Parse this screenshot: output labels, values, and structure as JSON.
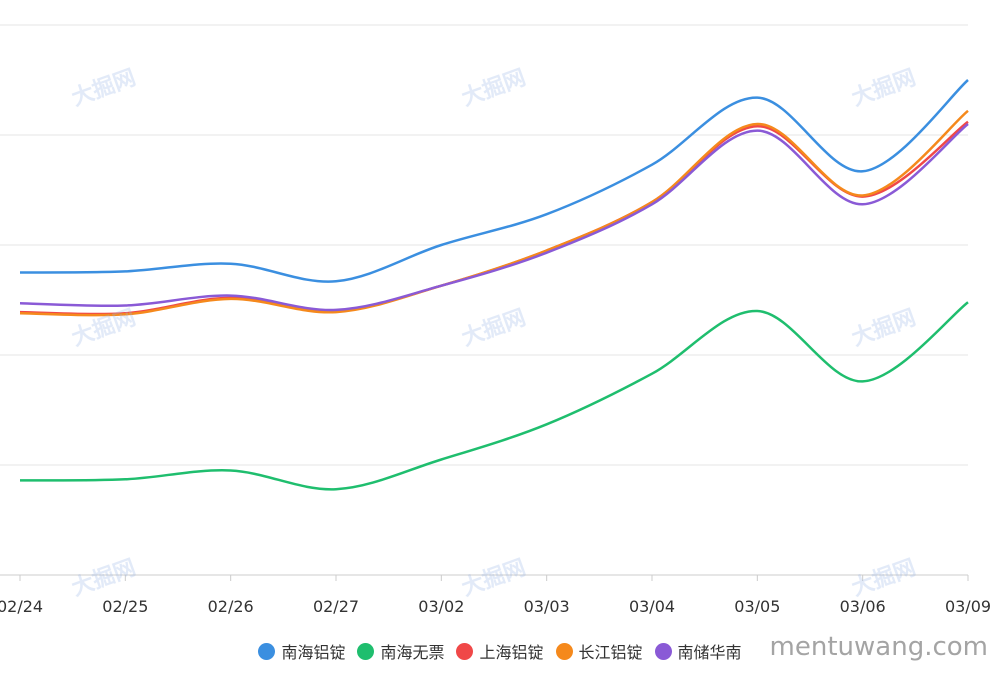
{
  "chart_data": {
    "type": "line",
    "title": "",
    "xlabel": "",
    "ylabel": "",
    "categories": [
      "02/24",
      "02/25",
      "02/26",
      "02/27",
      "03/02",
      "03/03",
      "03/04",
      "03/05",
      "03/06",
      "03/09"
    ],
    "ylim": [
      0,
      5
    ],
    "grid": true,
    "legend_position": "bottom",
    "series": [
      {
        "name": "南海铝锭",
        "color": "#3b8fe0",
        "values": [
          2.75,
          2.76,
          2.83,
          2.67,
          3.0,
          3.28,
          3.73,
          4.34,
          3.67,
          4.5
        ]
      },
      {
        "name": "南海无票",
        "color": "#1fbe6e",
        "values": [
          0.86,
          0.87,
          0.95,
          0.78,
          1.05,
          1.37,
          1.83,
          2.4,
          1.76,
          2.48
        ]
      },
      {
        "name": "上海铝锭",
        "color": "#f04848",
        "values": [
          2.39,
          2.38,
          2.52,
          2.4,
          2.63,
          2.95,
          3.39,
          4.08,
          3.44,
          4.12
        ]
      },
      {
        "name": "长江铝锭",
        "color": "#f5891c",
        "values": [
          2.38,
          2.37,
          2.51,
          2.39,
          2.63,
          2.95,
          3.39,
          4.1,
          3.45,
          4.22
        ]
      },
      {
        "name": "南储华南",
        "color": "#8a5ad6",
        "values": [
          2.47,
          2.45,
          2.54,
          2.41,
          2.63,
          2.93,
          3.37,
          4.04,
          3.37,
          4.1
        ]
      }
    ]
  },
  "watermarks": {
    "brand": "大掘网",
    "site": "mentuwang.com"
  },
  "colors": {
    "grid": "#e6e6e6",
    "axis": "#cccccc"
  }
}
